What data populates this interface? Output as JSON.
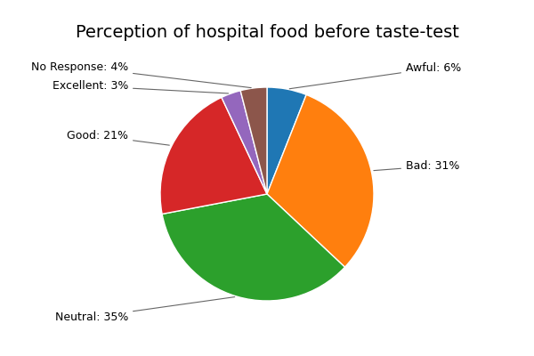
{
  "chart_data": {
    "type": "pie",
    "title": "Perception of hospital food before taste-test",
    "categories": [
      "Awful: 6%",
      "Bad: 31%",
      "Neutral: 35%",
      "Good: 21%",
      "Excellent: 3%",
      "No Response: 4%"
    ],
    "values": [
      6,
      31,
      35,
      21,
      3,
      4
    ]
  }
}
